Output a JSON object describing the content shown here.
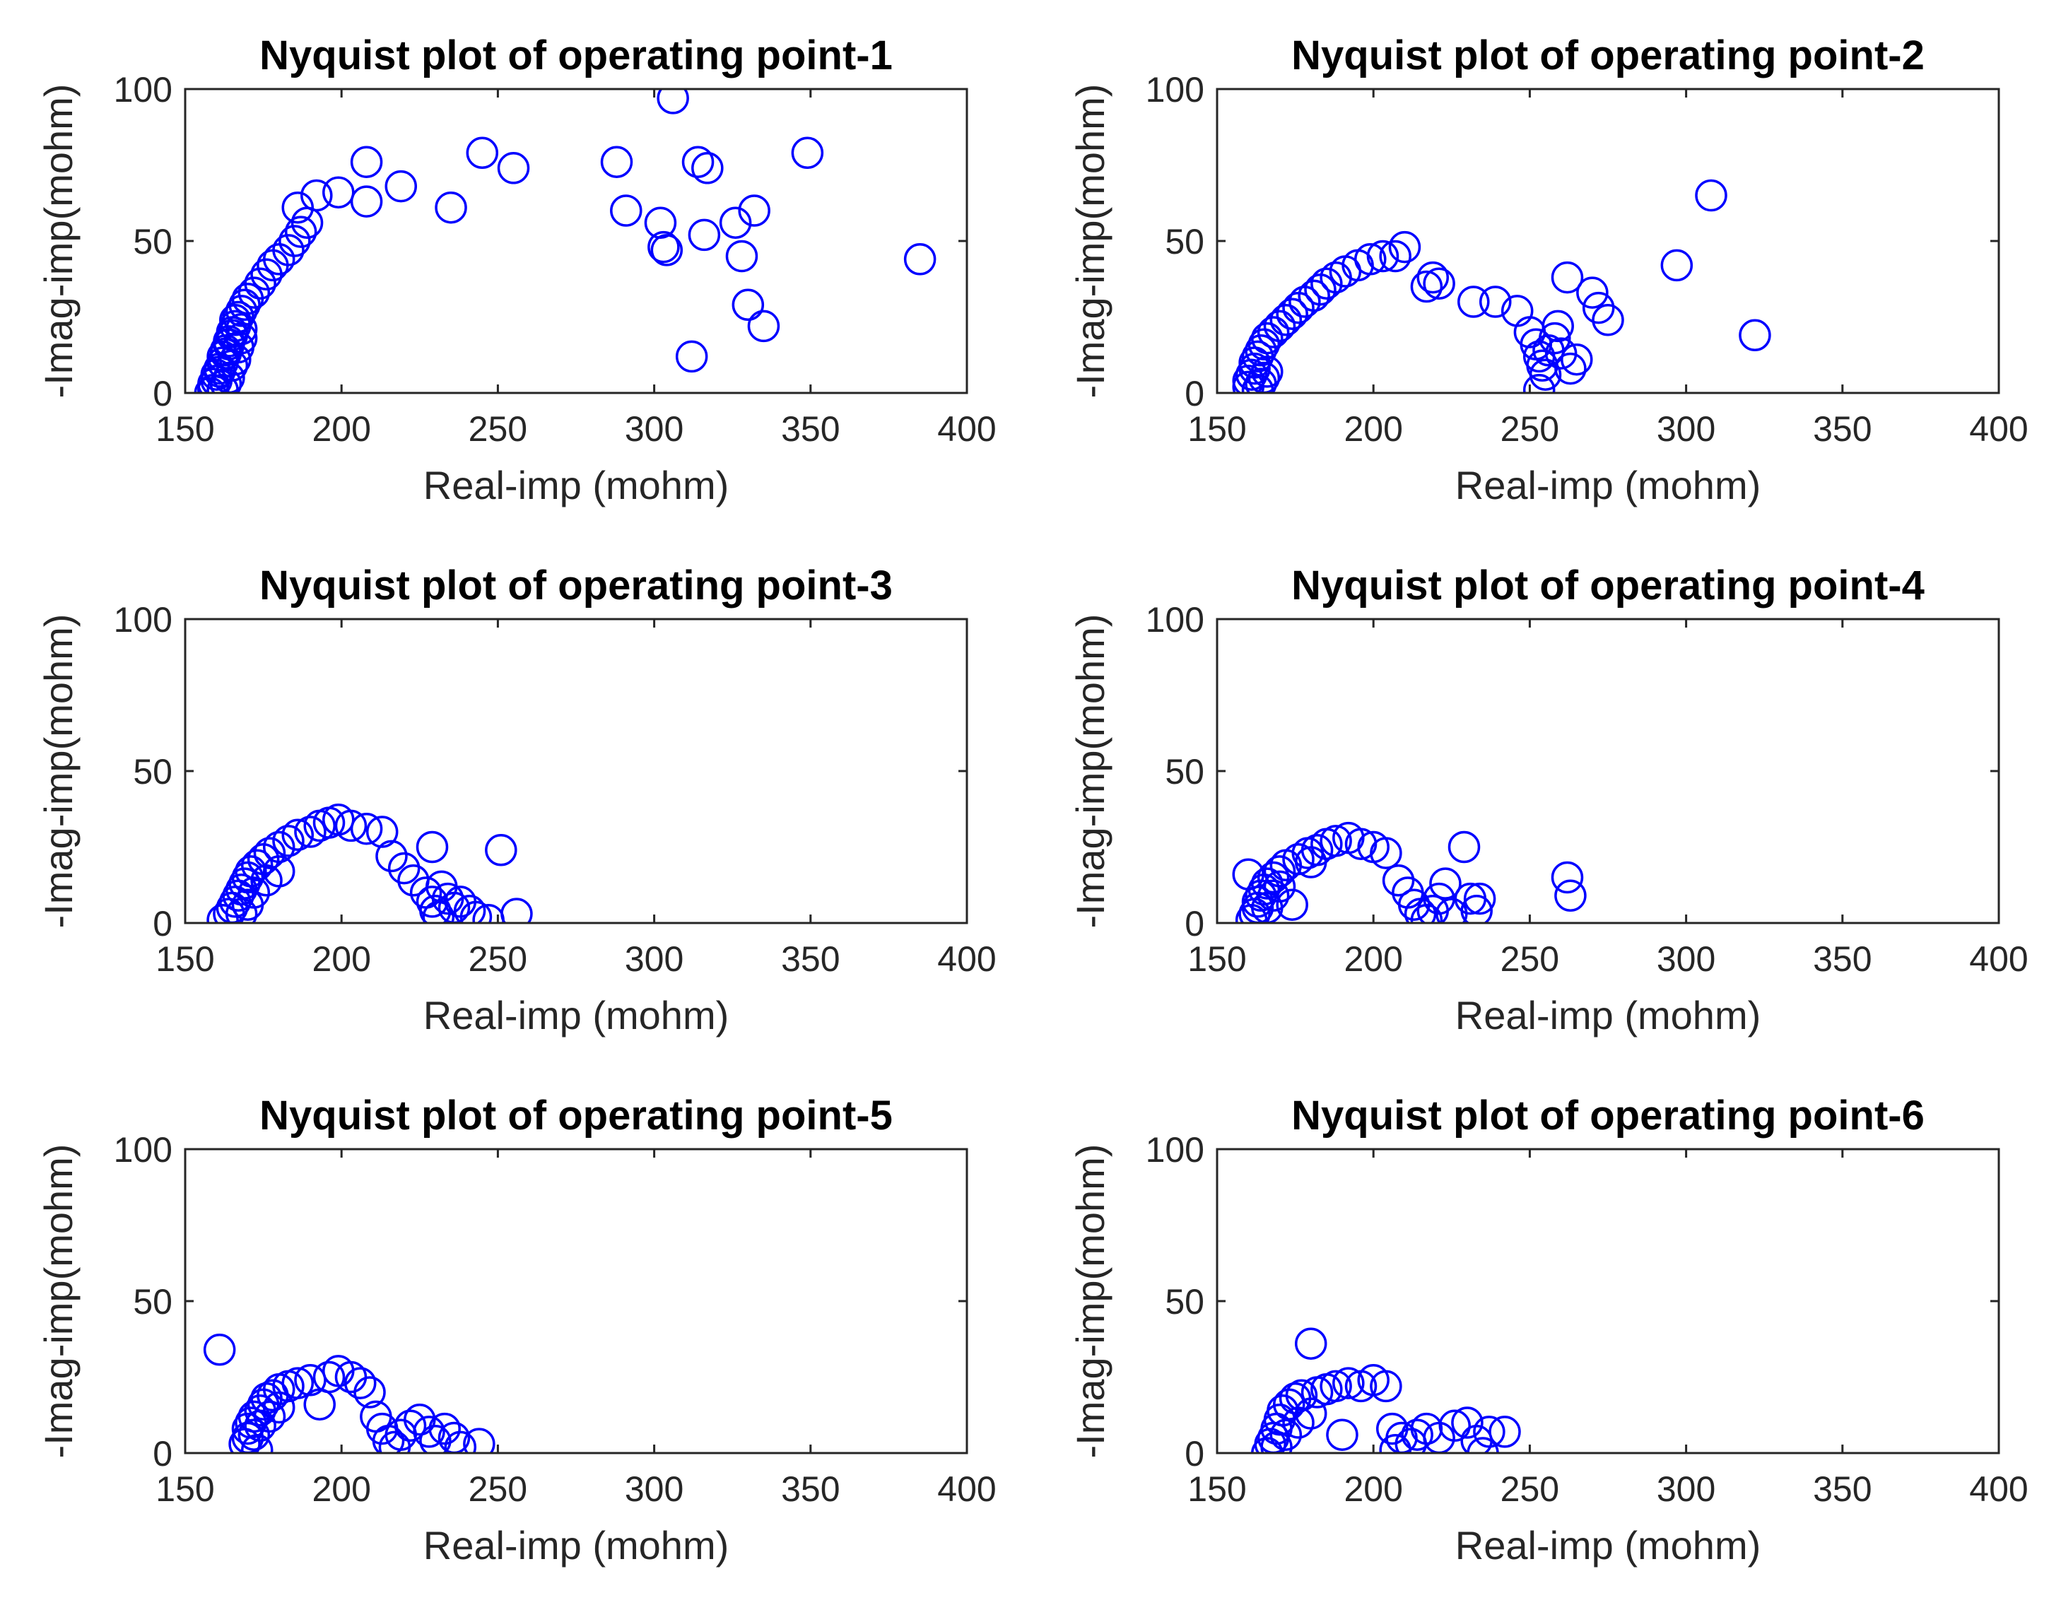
{
  "colors": {
    "marker": "#0000ff",
    "axis": "#262626",
    "title": "#000000"
  },
  "chart_data": [
    {
      "type": "scatter",
      "title": "Nyquist plot of operating point-1",
      "xlabel": "Real-imp (mohm)",
      "ylabel": "-Imag-imp(mohm)",
      "xlim": [
        150,
        400
      ],
      "ylim": [
        0,
        100
      ],
      "xticks": [
        "150",
        "200",
        "250",
        "300",
        "350",
        "400"
      ],
      "yticks": [
        "0",
        "50",
        "100"
      ],
      "marker": "circle-open",
      "points": [
        [
          158,
          0
        ],
        [
          159,
          1
        ],
        [
          159,
          3
        ],
        [
          160,
          4
        ],
        [
          160,
          6
        ],
        [
          161,
          7
        ],
        [
          161,
          8
        ],
        [
          162,
          10
        ],
        [
          162,
          12
        ],
        [
          163,
          13
        ],
        [
          163,
          14
        ],
        [
          164,
          16
        ],
        [
          164,
          17
        ],
        [
          165,
          19
        ],
        [
          165,
          20
        ],
        [
          166,
          22
        ],
        [
          166,
          24
        ],
        [
          167,
          25
        ],
        [
          168,
          27
        ],
        [
          169,
          29
        ],
        [
          170,
          31
        ],
        [
          172,
          33
        ],
        [
          174,
          36
        ],
        [
          176,
          39
        ],
        [
          178,
          42
        ],
        [
          180,
          44
        ],
        [
          183,
          47
        ],
        [
          185,
          50
        ],
        [
          187,
          53
        ],
        [
          189,
          56
        ],
        [
          186,
          61
        ],
        [
          192,
          65
        ],
        [
          199,
          66
        ],
        [
          208,
          63
        ],
        [
          208,
          76
        ],
        [
          219,
          68
        ],
        [
          235,
          61
        ],
        [
          245,
          79
        ],
        [
          255,
          74
        ],
        [
          288,
          76
        ],
        [
          291,
          60
        ],
        [
          302,
          56
        ],
        [
          303,
          48
        ],
        [
          304,
          47
        ],
        [
          306,
          97
        ],
        [
          312,
          12
        ],
        [
          314,
          76
        ],
        [
          316,
          52
        ],
        [
          317,
          74
        ],
        [
          326,
          56
        ],
        [
          328,
          45
        ],
        [
          330,
          29
        ],
        [
          332,
          60
        ],
        [
          335,
          22
        ],
        [
          349,
          79
        ],
        [
          385,
          44
        ],
        [
          162,
          1
        ],
        [
          163,
          3
        ],
        [
          164,
          5
        ],
        [
          165,
          9
        ],
        [
          166,
          11
        ],
        [
          167,
          15
        ],
        [
          168,
          18
        ],
        [
          168,
          21
        ]
      ]
    },
    {
      "type": "scatter",
      "title": "Nyquist plot of operating point-2",
      "xlabel": "Real-imp (mohm)",
      "ylabel": "-Imag-imp(mohm)",
      "xlim": [
        150,
        400
      ],
      "ylim": [
        0,
        100
      ],
      "xticks": [
        "150",
        "200",
        "250",
        "300",
        "350",
        "400"
      ],
      "yticks": [
        "0",
        "50",
        "100"
      ],
      "marker": "circle-open",
      "points": [
        [
          160,
          2
        ],
        [
          160,
          4
        ],
        [
          161,
          6
        ],
        [
          162,
          8
        ],
        [
          162,
          10
        ],
        [
          163,
          12
        ],
        [
          164,
          14
        ],
        [
          165,
          16
        ],
        [
          166,
          18
        ],
        [
          168,
          20
        ],
        [
          170,
          22
        ],
        [
          172,
          24
        ],
        [
          174,
          26
        ],
        [
          176,
          28
        ],
        [
          178,
          30
        ],
        [
          181,
          32
        ],
        [
          183,
          34
        ],
        [
          185,
          36
        ],
        [
          188,
          38
        ],
        [
          191,
          40
        ],
        [
          195,
          42
        ],
        [
          199,
          44
        ],
        [
          203,
          45
        ],
        [
          207,
          45
        ],
        [
          210,
          48
        ],
        [
          217,
          35
        ],
        [
          219,
          38
        ],
        [
          221,
          36
        ],
        [
          232,
          30
        ],
        [
          239,
          30
        ],
        [
          246,
          27
        ],
        [
          250,
          20
        ],
        [
          252,
          16
        ],
        [
          253,
          12
        ],
        [
          254,
          9
        ],
        [
          255,
          6
        ],
        [
          253,
          1
        ],
        [
          256,
          14
        ],
        [
          258,
          18
        ],
        [
          259,
          22
        ],
        [
          260,
          13
        ],
        [
          262,
          38
        ],
        [
          263,
          8
        ],
        [
          265,
          11
        ],
        [
          270,
          33
        ],
        [
          272,
          28
        ],
        [
          275,
          24
        ],
        [
          297,
          42
        ],
        [
          308,
          65
        ],
        [
          322,
          19
        ],
        [
          163,
          1
        ],
        [
          164,
          3
        ],
        [
          165,
          5
        ],
        [
          166,
          7
        ]
      ]
    },
    {
      "type": "scatter",
      "title": "Nyquist plot of operating point-3",
      "xlabel": "Real-imp (mohm)",
      "ylabel": "-Imag-imp(mohm)",
      "xlim": [
        150,
        400
      ],
      "ylim": [
        0,
        100
      ],
      "xticks": [
        "150",
        "200",
        "250",
        "300",
        "350",
        "400"
      ],
      "yticks": [
        "0",
        "50",
        "100"
      ],
      "marker": "circle-open",
      "points": [
        [
          162,
          1
        ],
        [
          164,
          3
        ],
        [
          165,
          5
        ],
        [
          166,
          7
        ],
        [
          167,
          9
        ],
        [
          168,
          11
        ],
        [
          169,
          13
        ],
        [
          170,
          15
        ],
        [
          171,
          17
        ],
        [
          173,
          19
        ],
        [
          175,
          21
        ],
        [
          177,
          23
        ],
        [
          180,
          25
        ],
        [
          183,
          27
        ],
        [
          186,
          29
        ],
        [
          190,
          30
        ],
        [
          193,
          32
        ],
        [
          196,
          33
        ],
        [
          199,
          34
        ],
        [
          203,
          32
        ],
        [
          208,
          31
        ],
        [
          213,
          30
        ],
        [
          216,
          22
        ],
        [
          220,
          18
        ],
        [
          223,
          14
        ],
        [
          227,
          10
        ],
        [
          229,
          7
        ],
        [
          230,
          4
        ],
        [
          231,
          2
        ],
        [
          229,
          25
        ],
        [
          232,
          12
        ],
        [
          234,
          8
        ],
        [
          236,
          5
        ],
        [
          238,
          7
        ],
        [
          241,
          4
        ],
        [
          243,
          2
        ],
        [
          247,
          1
        ],
        [
          251,
          24
        ],
        [
          256,
          3
        ],
        [
          168,
          3
        ],
        [
          170,
          6
        ],
        [
          172,
          10
        ],
        [
          176,
          14
        ],
        [
          180,
          17
        ]
      ]
    },
    {
      "type": "scatter",
      "title": "Nyquist plot of operating point-4",
      "xlabel": "Real-imp (mohm)",
      "ylabel": "-Imag-imp(mohm)",
      "xlim": [
        150,
        400
      ],
      "ylim": [
        0,
        100
      ],
      "xticks": [
        "150",
        "200",
        "250",
        "300",
        "350",
        "400"
      ],
      "yticks": [
        "0",
        "50",
        "100"
      ],
      "marker": "circle-open",
      "points": [
        [
          160,
          16
        ],
        [
          161,
          1
        ],
        [
          162,
          3
        ],
        [
          163,
          5
        ],
        [
          163,
          7
        ],
        [
          164,
          9
        ],
        [
          165,
          11
        ],
        [
          166,
          13
        ],
        [
          168,
          15
        ],
        [
          170,
          17
        ],
        [
          172,
          19
        ],
        [
          174,
          6
        ],
        [
          176,
          21
        ],
        [
          179,
          23
        ],
        [
          182,
          24
        ],
        [
          185,
          26
        ],
        [
          188,
          27
        ],
        [
          192,
          28
        ],
        [
          196,
          26
        ],
        [
          200,
          25
        ],
        [
          204,
          23
        ],
        [
          208,
          14
        ],
        [
          211,
          10
        ],
        [
          213,
          6
        ],
        [
          215,
          3
        ],
        [
          217,
          1
        ],
        [
          219,
          4
        ],
        [
          221,
          8
        ],
        [
          223,
          13
        ],
        [
          225,
          3
        ],
        [
          229,
          25
        ],
        [
          231,
          8
        ],
        [
          233,
          4
        ],
        [
          234,
          8
        ],
        [
          262,
          15
        ],
        [
          263,
          9
        ],
        [
          166,
          5
        ],
        [
          168,
          9
        ],
        [
          170,
          12
        ],
        [
          180,
          20
        ]
      ]
    },
    {
      "type": "scatter",
      "title": "Nyquist plot of operating point-5",
      "xlabel": "Real-imp (mohm)",
      "ylabel": "-Imag-imp(mohm)",
      "xlim": [
        150,
        400
      ],
      "ylim": [
        0,
        100
      ],
      "xticks": [
        "150",
        "200",
        "250",
        "300",
        "350",
        "400"
      ],
      "yticks": [
        "0",
        "50",
        "100"
      ],
      "marker": "circle-open",
      "points": [
        [
          161,
          34
        ],
        [
          169,
          3
        ],
        [
          170,
          5
        ],
        [
          170,
          8
        ],
        [
          171,
          10
        ],
        [
          172,
          12
        ],
        [
          173,
          1
        ],
        [
          174,
          14
        ],
        [
          175,
          16
        ],
        [
          176,
          18
        ],
        [
          178,
          19
        ],
        [
          180,
          21
        ],
        [
          183,
          22
        ],
        [
          186,
          23
        ],
        [
          190,
          24
        ],
        [
          193,
          16
        ],
        [
          196,
          25
        ],
        [
          199,
          27
        ],
        [
          203,
          25
        ],
        [
          206,
          23
        ],
        [
          209,
          20
        ],
        [
          211,
          12
        ],
        [
          213,
          8
        ],
        [
          215,
          4
        ],
        [
          217,
          2
        ],
        [
          219,
          6
        ],
        [
          222,
          9
        ],
        [
          225,
          11
        ],
        [
          228,
          7
        ],
        [
          230,
          4
        ],
        [
          233,
          8
        ],
        [
          236,
          5
        ],
        [
          238,
          2
        ],
        [
          244,
          3
        ],
        [
          172,
          6
        ],
        [
          174,
          9
        ],
        [
          177,
          12
        ],
        [
          180,
          15
        ]
      ]
    },
    {
      "type": "scatter",
      "title": "Nyquist plot of operating point-6",
      "xlabel": "Real-imp (mohm)",
      "ylabel": "-Imag-imp(mohm)",
      "xlim": [
        150,
        400
      ],
      "ylim": [
        0,
        100
      ],
      "xticks": [
        "150",
        "200",
        "250",
        "300",
        "350",
        "400"
      ],
      "yticks": [
        "0",
        "50",
        "100"
      ],
      "marker": "circle-open",
      "points": [
        [
          166,
          0
        ],
        [
          167,
          3
        ],
        [
          168,
          5
        ],
        [
          169,
          8
        ],
        [
          170,
          11
        ],
        [
          171,
          14
        ],
        [
          173,
          16
        ],
        [
          175,
          18
        ],
        [
          177,
          19
        ],
        [
          180,
          36
        ],
        [
          182,
          20
        ],
        [
          185,
          21
        ],
        [
          188,
          22
        ],
        [
          190,
          6
        ],
        [
          192,
          23
        ],
        [
          196,
          22
        ],
        [
          200,
          24
        ],
        [
          204,
          22
        ],
        [
          206,
          8
        ],
        [
          207,
          1
        ],
        [
          209,
          5
        ],
        [
          212,
          3
        ],
        [
          214,
          6
        ],
        [
          217,
          8
        ],
        [
          221,
          5
        ],
        [
          226,
          9
        ],
        [
          230,
          10
        ],
        [
          233,
          4
        ],
        [
          235,
          0
        ],
        [
          237,
          7
        ],
        [
          242,
          7
        ],
        [
          169,
          2
        ],
        [
          172,
          6
        ],
        [
          176,
          10
        ],
        [
          180,
          13
        ]
      ]
    }
  ]
}
